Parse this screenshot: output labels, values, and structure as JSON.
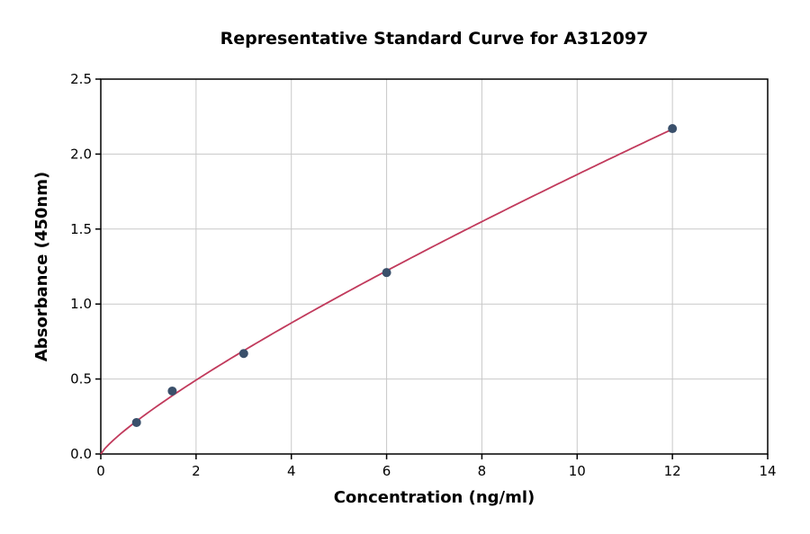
{
  "chart_data": {
    "type": "scatter",
    "title": "Representative Standard Curve for A312097",
    "xlabel": "Concentration (ng/ml)",
    "ylabel": "Absorbance (450nm)",
    "xlim": [
      0,
      14
    ],
    "ylim": [
      0,
      2.5
    ],
    "grid": true,
    "legend": "none",
    "x_ticks": [
      {
        "v": 0,
        "label": "0"
      },
      {
        "v": 2,
        "label": "2"
      },
      {
        "v": 4,
        "label": "4"
      },
      {
        "v": 6,
        "label": "6"
      },
      {
        "v": 8,
        "label": "8"
      },
      {
        "v": 10,
        "label": "10"
      },
      {
        "v": 12,
        "label": "12"
      },
      {
        "v": 14,
        "label": "14"
      }
    ],
    "y_ticks": [
      {
        "v": 0,
        "label": "0.0"
      },
      {
        "v": 0.5,
        "label": "0.5"
      },
      {
        "v": 1,
        "label": "1.0"
      },
      {
        "v": 1.5,
        "label": "1.5"
      },
      {
        "v": 2,
        "label": "2.0"
      },
      {
        "v": 2.5,
        "label": "2.5"
      }
    ],
    "points": {
      "x": [
        0.75,
        1.5,
        3,
        6,
        12
      ],
      "y": [
        0.21,
        0.42,
        0.67,
        1.21,
        2.17
      ]
    },
    "fit_curve": {
      "model": "power",
      "start_x": 0,
      "end_x": 12,
      "color": "#c13a5c"
    },
    "point_color": "#3a506b",
    "grid_color": "#c8c8c8",
    "axis_color": "#000000"
  }
}
